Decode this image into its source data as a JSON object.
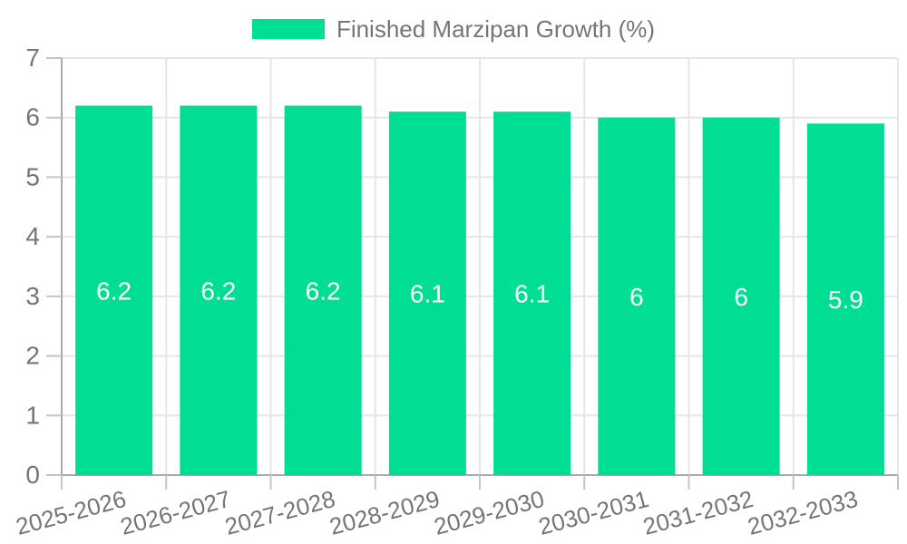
{
  "legend": {
    "label": "Finished Marzipan Growth (%)",
    "position": "top"
  },
  "chart_data": {
    "type": "bar",
    "title": "",
    "xlabel": "",
    "ylabel": "",
    "categories": [
      "2025-2026",
      "2026-2027",
      "2027-2028",
      "2028-2029",
      "2029-2030",
      "2030-2031",
      "2031-2032",
      "2032-2033"
    ],
    "series": [
      {
        "name": "Finished Marzipan Growth (%)",
        "values": [
          6.2,
          6.2,
          6.2,
          6.1,
          6.1,
          6,
          6,
          5.9
        ]
      }
    ],
    "value_labels": [
      "6.2",
      "6.2",
      "6.2",
      "6.1",
      "6.1",
      "6",
      "6",
      "5.9"
    ],
    "ylim": [
      0,
      7
    ],
    "ytick_step": 1,
    "yticks": [
      0,
      1,
      2,
      3,
      4,
      5,
      6,
      7
    ],
    "grid": true,
    "grid_vertical": true,
    "legend_position": "top",
    "value_label_position": "center-inside",
    "xtick_label_rotation_deg": -15,
    "colors": {
      "bar": "#00DE93",
      "grid": "#e6e6e6",
      "axis": "#a9a9a9",
      "tick": "#c4c4c4",
      "label_text": "#757575",
      "value_text": "#ffffff",
      "background": "#ffffff"
    }
  }
}
